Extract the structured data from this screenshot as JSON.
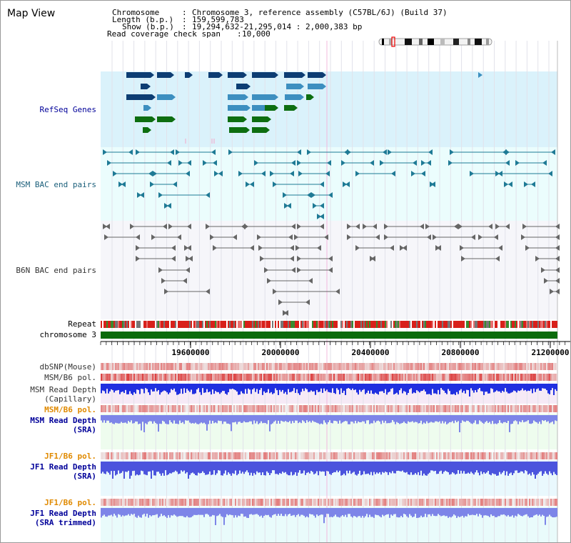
{
  "view_title": "Map View",
  "info": {
    "chromosome_key": "Chromosome",
    "chromosome_val": "Chromosome 3, reference assembly (C57BL/6J) (Build 37)",
    "length_key": "Length (b.p.)",
    "length_val": "159,599,783",
    "show_key": "Show (b.p.)",
    "show_val": "19,294,632-21,295,014 : 2,000,383 bp",
    "coverage_key": "Read coverage check span",
    "coverage_val": "10,000"
  },
  "tracks": {
    "refseq": "RefSeq Genes",
    "msm_bac": "MSM BAC end pairs",
    "b6n_bac": "B6N BAC end pairs",
    "repeat": "Repeat",
    "chromosome": "chromosome 3",
    "dbsnp": "dbSNP(Mouse)",
    "msm_b6_pol_1": "MSM/B6 pol.",
    "msm_depth_cap": "MSM Read Depth\n(Capillary)",
    "msm_b6_pol_2": "MSM/B6 pol.",
    "msm_depth_sra": "MSM Read Depth\n(SRA)",
    "jf1_b6_pol_1": "JF1/B6 pol.",
    "jf1_depth_sra": "JF1 Read Depth\n(SRA)",
    "jf1_b6_pol_2": "JF1/B6 pol.",
    "jf1_depth_trim": "JF1 Read Depth\n(SRA trimmed)"
  },
  "axis_ticks": [
    "19600000",
    "20000000",
    "20400000",
    "20800000",
    "21200000"
  ],
  "colors": {
    "refseq_bg": "#daf2fb",
    "msm_bg": "#ebfdfd",
    "b6n_bg": "#f6f6fa",
    "gene_dark": "#0d3d73",
    "gene_mid": "#3d8fc0",
    "gene_green": "#0d6e10",
    "msm_line": "#1e7a95",
    "b6n_line": "#666666",
    "chromosome": "#0b6b0b",
    "pol_red": "#e8382e",
    "depth_blue": "#2030e0",
    "depth_light": "#7d85e8",
    "orange_label": "#e08a00",
    "navy_label": "#000099"
  }
}
